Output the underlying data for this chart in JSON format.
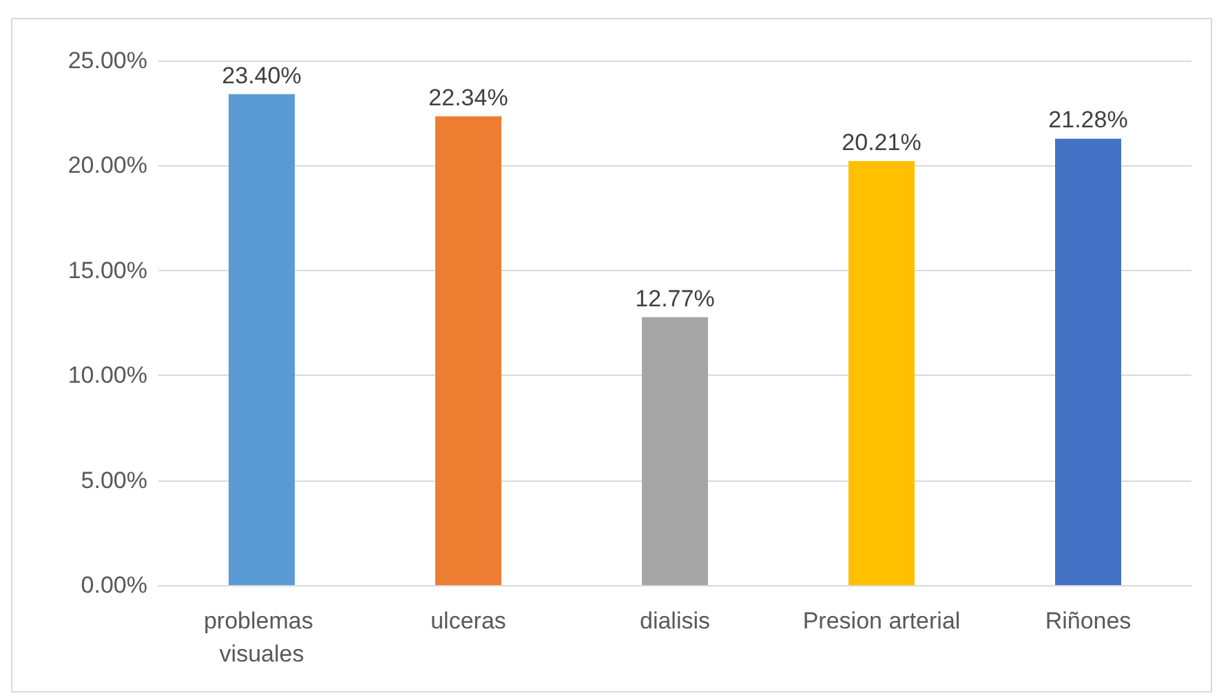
{
  "chart_data": {
    "type": "bar",
    "categories": [
      "problemas visuales",
      "ulceras",
      "dialisis",
      "Presion arterial",
      "Riñones"
    ],
    "values": [
      23.4,
      22.34,
      12.77,
      20.21,
      21.28
    ],
    "colors": [
      "#5b9bd5",
      "#ed7d31",
      "#a5a5a5",
      "#ffc000",
      "#4472c4"
    ],
    "value_labels": [
      "23.40%",
      "22.34%",
      "12.77%",
      "20.21%",
      "21.28%"
    ],
    "ylim": [
      0,
      25
    ],
    "yticks": [
      {
        "value": 0,
        "label": "0.00%"
      },
      {
        "value": 5,
        "label": "5.00%"
      },
      {
        "value": 10,
        "label": "10.00%"
      },
      {
        "value": 15,
        "label": "15.00%"
      },
      {
        "value": 20,
        "label": "20.00%"
      },
      {
        "value": 25,
        "label": "25.00%"
      }
    ],
    "grid": "y"
  }
}
